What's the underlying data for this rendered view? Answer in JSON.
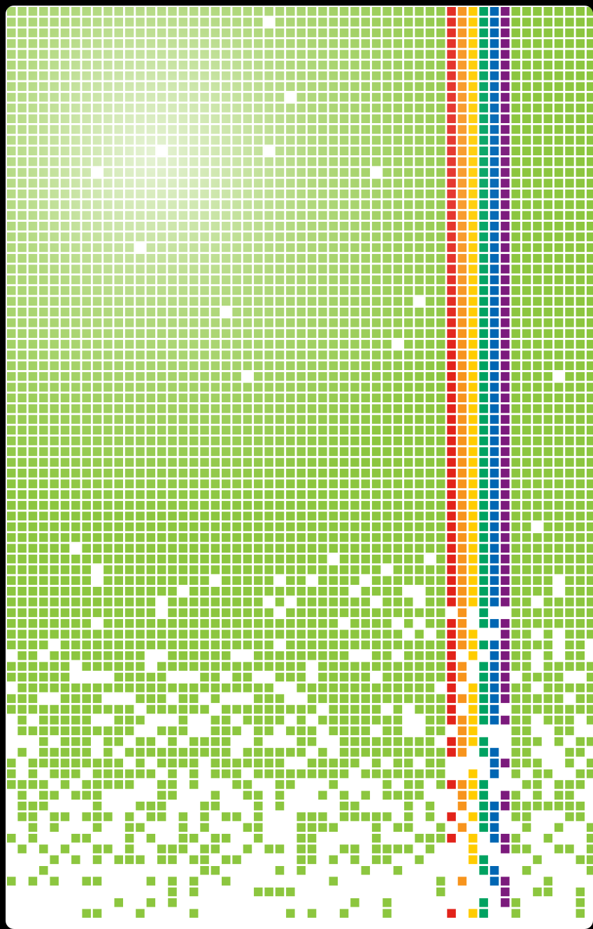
{
  "artwork": {
    "description_free": true,
    "colors": {
      "background": "#000000",
      "panel": "#ffffff",
      "green": "#8cc63f",
      "highlight": "#e9f4d6",
      "stripe_red": "#e2231a",
      "stripe_orange": "#f7941d",
      "stripe_yellow": "#ffcc00",
      "stripe_green": "#00a261",
      "stripe_blue": "#0066b3",
      "stripe_purple": "#7b1a7c"
    },
    "grid": {
      "columns": 55,
      "rows": 85
    },
    "stripes": [
      {
        "column": 41,
        "color_key": "stripe_red"
      },
      {
        "column": 42,
        "color_key": "stripe_orange"
      },
      {
        "column": 43,
        "color_key": "stripe_yellow"
      },
      {
        "column": 44,
        "color_key": "stripe_green"
      },
      {
        "column": 45,
        "color_key": "stripe_blue"
      },
      {
        "column": 46,
        "color_key": "stripe_purple"
      }
    ]
  }
}
